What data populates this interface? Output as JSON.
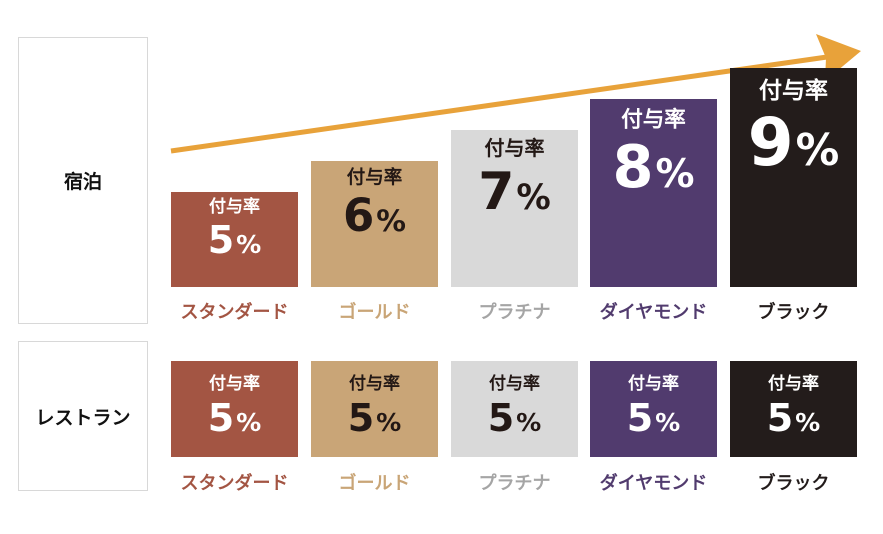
{
  "chart_data": {
    "type": "bar",
    "categories": [
      "スタンダード",
      "ゴールド",
      "プラチナ",
      "ダイヤモンド",
      "ブラック"
    ],
    "series": [
      {
        "name": "宿泊",
        "values": [
          5,
          6,
          7,
          8,
          9
        ]
      },
      {
        "name": "レストラン",
        "values": [
          5,
          5,
          5,
          5,
          5
        ]
      }
    ],
    "value_prefix": "付与率",
    "value_unit": "%",
    "ylim": [
      0,
      9
    ],
    "colors": [
      "#a35543",
      "#c9a577",
      "#d9d9d9",
      "#513b6e",
      "#231c1b"
    ],
    "label_colors": [
      "#a35543",
      "#c9a577",
      "#a5a5a5",
      "#513b6e",
      "#231c1b"
    ],
    "value_text_colors": [
      "#ffffff",
      "#231815",
      "#231815",
      "#ffffff",
      "#ffffff"
    ],
    "arrow_color": "#e8a23a",
    "legend": "none",
    "grid": false
  }
}
